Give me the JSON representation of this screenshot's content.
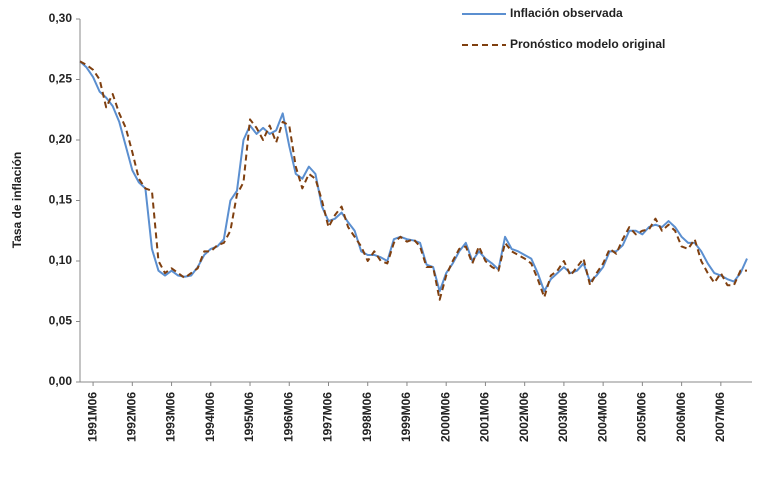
{
  "chart_data": {
    "type": "line",
    "y_label": "Tasa de inflación",
    "legend": "upper right",
    "grid": false,
    "ylim": [
      0,
      0.3
    ],
    "yticks": [
      {
        "value": 0,
        "label": "0,00"
      },
      {
        "value": 0.05,
        "label": "0,05"
      },
      {
        "value": 0.1,
        "label": "0,10"
      },
      {
        "value": 0.15,
        "label": "0,15"
      },
      {
        "value": 0.2,
        "label": "0,20"
      },
      {
        "value": 0.25,
        "label": "0,25"
      },
      {
        "value": 0.3,
        "label": "0,30"
      }
    ],
    "categories": [
      null,
      null,
      "1991M06",
      null,
      null,
      null,
      null,
      null,
      "1992M06",
      null,
      null,
      null,
      null,
      null,
      "1993M06",
      null,
      null,
      null,
      null,
      null,
      "1994M06",
      null,
      null,
      null,
      null,
      null,
      "1995M06",
      null,
      null,
      null,
      null,
      null,
      "1996M06",
      null,
      null,
      null,
      null,
      null,
      "1997M06",
      null,
      null,
      null,
      null,
      null,
      "1998M06",
      null,
      null,
      null,
      null,
      null,
      "1999M06",
      null,
      null,
      null,
      null,
      null,
      "2000M06",
      null,
      null,
      null,
      null,
      null,
      "2001M06",
      null,
      null,
      null,
      null,
      null,
      "2002M06",
      null,
      null,
      null,
      null,
      null,
      "2003M06",
      null,
      null,
      null,
      null,
      null,
      "2004M06",
      null,
      null,
      null,
      null,
      null,
      "2005M06",
      null,
      null,
      null,
      null,
      null,
      "2006M06",
      null,
      null,
      null,
      null,
      null,
      "2007M06",
      null,
      null,
      null,
      null
    ],
    "series": [
      {
        "name": "Inflación observada",
        "color": "#5b8fd0",
        "dash": false,
        "values": [
          0.265,
          0.26,
          0.252,
          0.24,
          0.235,
          0.228,
          0.215,
          0.195,
          0.175,
          0.165,
          0.16,
          0.11,
          0.092,
          0.088,
          0.092,
          0.088,
          0.087,
          0.088,
          0.095,
          0.105,
          0.11,
          0.112,
          0.118,
          0.15,
          0.158,
          0.2,
          0.212,
          0.205,
          0.21,
          0.205,
          0.208,
          0.222,
          0.195,
          0.172,
          0.168,
          0.178,
          0.172,
          0.145,
          0.133,
          0.135,
          0.14,
          0.132,
          0.125,
          0.108,
          0.105,
          0.105,
          0.103,
          0.1,
          0.118,
          0.12,
          0.118,
          0.117,
          0.115,
          0.097,
          0.095,
          0.075,
          0.09,
          0.098,
          0.108,
          0.115,
          0.1,
          0.108,
          0.102,
          0.098,
          0.093,
          0.12,
          0.11,
          0.108,
          0.105,
          0.102,
          0.09,
          0.075,
          0.085,
          0.09,
          0.095,
          0.09,
          0.092,
          0.098,
          0.083,
          0.088,
          0.095,
          0.108,
          0.108,
          0.113,
          0.125,
          0.125,
          0.122,
          0.128,
          0.13,
          0.128,
          0.133,
          0.128,
          0.12,
          0.115,
          0.115,
          0.108,
          0.098,
          0.09,
          0.088,
          0.085,
          0.083,
          0.09,
          0.102
        ]
      },
      {
        "name": "Pronóstico modelo original",
        "color": "#7f3f0f",
        "dash": true,
        "values": [
          0.265,
          0.262,
          0.258,
          0.25,
          0.227,
          0.238,
          0.222,
          0.21,
          0.19,
          0.168,
          0.16,
          0.158,
          0.1,
          0.09,
          0.094,
          0.09,
          0.086,
          0.09,
          0.094,
          0.108,
          0.108,
          0.113,
          0.115,
          0.125,
          0.155,
          0.165,
          0.217,
          0.21,
          0.2,
          0.212,
          0.198,
          0.215,
          0.212,
          0.178,
          0.16,
          0.172,
          0.168,
          0.15,
          0.128,
          0.138,
          0.145,
          0.128,
          0.12,
          0.112,
          0.1,
          0.108,
          0.1,
          0.098,
          0.115,
          0.12,
          0.116,
          0.118,
          0.112,
          0.095,
          0.095,
          0.068,
          0.088,
          0.1,
          0.11,
          0.112,
          0.098,
          0.112,
          0.1,
          0.095,
          0.092,
          0.115,
          0.108,
          0.105,
          0.102,
          0.098,
          0.085,
          0.07,
          0.088,
          0.092,
          0.1,
          0.088,
          0.095,
          0.102,
          0.08,
          0.09,
          0.098,
          0.11,
          0.106,
          0.118,
          0.128,
          0.122,
          0.125,
          0.126,
          0.135,
          0.125,
          0.13,
          0.125,
          0.112,
          0.11,
          0.118,
          0.1,
          0.09,
          0.082,
          0.09,
          0.08,
          0.08,
          0.092,
          0.092
        ]
      }
    ]
  }
}
